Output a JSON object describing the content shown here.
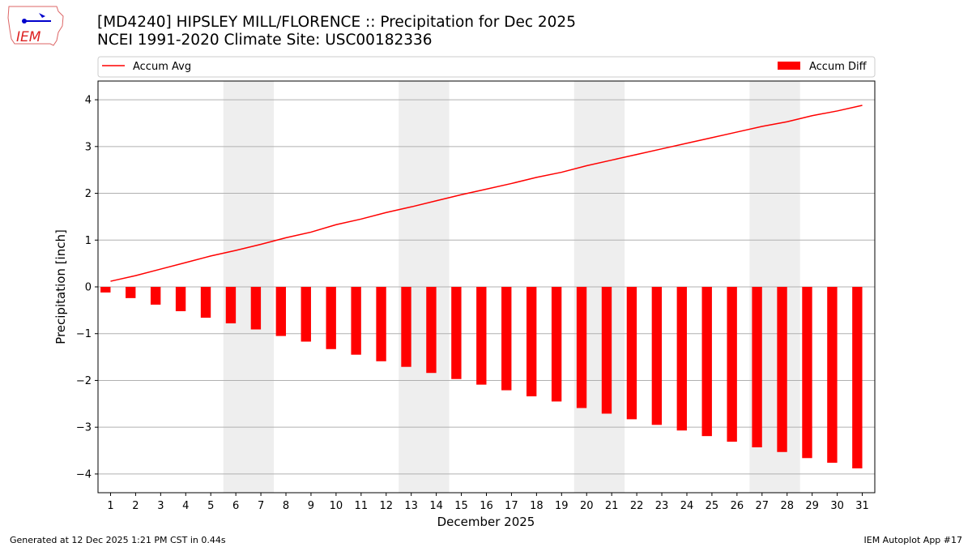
{
  "logo": {
    "text": "IEM"
  },
  "title_line1": "[MD4240] HIPSLEY MILL/FLORENCE :: Precipitation for Dec 2025",
  "title_line2": "NCEI 1991-2020 Climate Site: USC00182336",
  "footer_left": "Generated at 12 Dec 2025 1:21 PM CST in 0.44s",
  "footer_right": "IEM Autoplot App #17",
  "chart_data": {
    "type": "bar",
    "xlabel": "December 2025",
    "ylabel": "Precipitation [inch]",
    "ylim": [
      -4.4,
      4.4
    ],
    "yticks": [
      -4,
      -3,
      -2,
      -1,
      0,
      1,
      2,
      3,
      4
    ],
    "grid": "horizontal",
    "legend_placement": "top (above plot)",
    "categories": [
      1,
      2,
      3,
      4,
      5,
      6,
      7,
      8,
      9,
      10,
      11,
      12,
      13,
      14,
      15,
      16,
      17,
      18,
      19,
      20,
      21,
      22,
      23,
      24,
      25,
      26,
      27,
      28,
      29,
      30,
      31
    ],
    "weekend_days": [
      6,
      7,
      13,
      14,
      20,
      21,
      27,
      28
    ],
    "weekend_color": "#eeeeee",
    "series": [
      {
        "name": "Accum Avg",
        "type": "line",
        "color": "#ff0000",
        "values": [
          0.12,
          0.24,
          0.38,
          0.52,
          0.66,
          0.78,
          0.91,
          1.05,
          1.17,
          1.33,
          1.45,
          1.59,
          1.71,
          1.84,
          1.97,
          2.09,
          2.21,
          2.34,
          2.45,
          2.59,
          2.71,
          2.83,
          2.95,
          3.07,
          3.19,
          3.31,
          3.43,
          3.53,
          3.66,
          3.76,
          3.88
        ]
      },
      {
        "name": "Accum Diff",
        "type": "bar",
        "color": "#ff0000",
        "values": [
          -0.12,
          -0.24,
          -0.38,
          -0.52,
          -0.66,
          -0.78,
          -0.91,
          -1.05,
          -1.17,
          -1.33,
          -1.45,
          -1.59,
          -1.71,
          -1.84,
          -1.97,
          -2.09,
          -2.21,
          -2.34,
          -2.45,
          -2.59,
          -2.71,
          -2.83,
          -2.95,
          -3.07,
          -3.19,
          -3.31,
          -3.43,
          -3.53,
          -3.66,
          -3.76,
          -3.88
        ]
      }
    ]
  }
}
